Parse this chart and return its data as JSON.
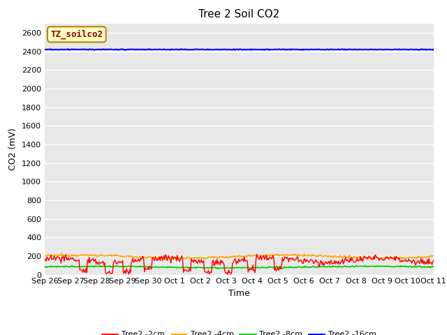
{
  "title": "Tree 2 Soil CO2",
  "xlabel": "Time",
  "ylabel": "CO2 (mV)",
  "ylim": [
    0,
    2700
  ],
  "yticks": [
    0,
    200,
    400,
    600,
    800,
    1000,
    1200,
    1400,
    1600,
    1800,
    2000,
    2200,
    2400,
    2600
  ],
  "xtick_labels": [
    "Sep 26",
    "Sep 27",
    "Sep 28",
    "Sep 29",
    "Sep 30",
    "Oct 1",
    "Oct 2",
    "Oct 3",
    "Oct 4",
    "Oct 5",
    "Oct 6",
    "Oct 7",
    "Oct 8",
    "Oct 9",
    "Oct 10",
    "Oct 11"
  ],
  "num_points": 500,
  "blue_value": 2420,
  "colors": {
    "red": "#FF0000",
    "orange": "#FFA500",
    "green": "#00CC00",
    "blue": "#0000FF"
  },
  "legend_labels": [
    "Tree2 -2cm",
    "Tree2 -4cm",
    "Tree2 -8cm",
    "Tree2 -16cm"
  ],
  "watermark_text": "TZ_soilco2",
  "watermark_color": "#8B0000",
  "watermark_bg": "#FFFFC0",
  "watermark_edge": "#B8860B",
  "plot_bg_light": "#E8E8E8",
  "plot_bg_dark": "#DCDCDC",
  "title_fontsize": 11,
  "axis_label_fontsize": 9,
  "tick_fontsize": 8,
  "legend_fontsize": 8
}
